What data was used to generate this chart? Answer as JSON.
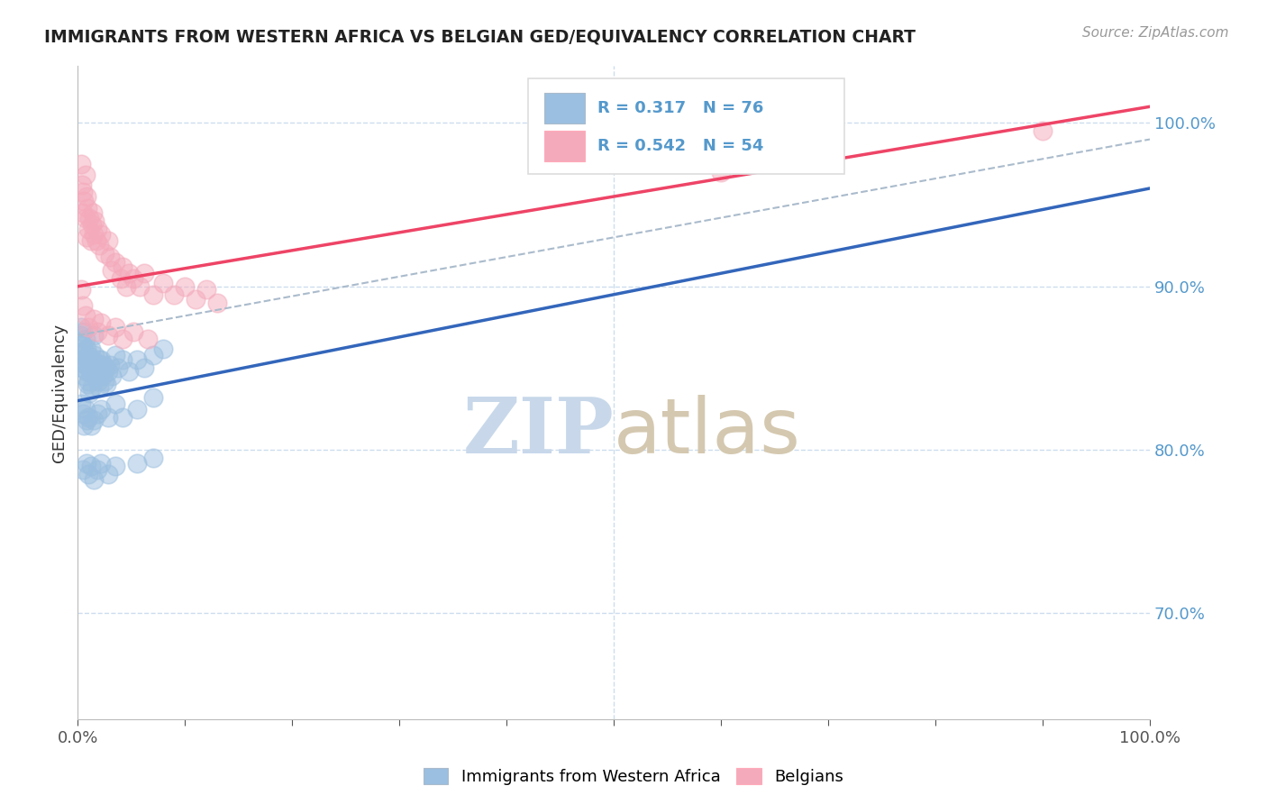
{
  "title": "IMMIGRANTS FROM WESTERN AFRICA VS BELGIAN GED/EQUIVALENCY CORRELATION CHART",
  "source_text": "Source: ZipAtlas.com",
  "ylabel": "GED/Equivalency",
  "y_ticks": [
    "70.0%",
    "80.0%",
    "90.0%",
    "100.0%"
  ],
  "y_tick_vals": [
    0.7,
    0.8,
    0.9,
    1.0
  ],
  "legend_label1": "Immigrants from Western Africa",
  "legend_label2": "Belgians",
  "R1": 0.317,
  "N1": 76,
  "R2": 0.542,
  "N2": 54,
  "color_blue": "#9BBFE0",
  "color_pink": "#F4AABB",
  "color_blue_line": "#3366BB",
  "color_pink_line": "#EE4466",
  "color_dashed": "#AABBCC",
  "watermark_color": "#C8D8EA",
  "xlim": [
    0.0,
    1.0
  ],
  "ylim": [
    0.635,
    1.035
  ],
  "blue_points": [
    [
      0.002,
      0.87
    ],
    [
      0.003,
      0.875
    ],
    [
      0.003,
      0.858
    ],
    [
      0.004,
      0.865
    ],
    [
      0.004,
      0.85
    ],
    [
      0.005,
      0.872
    ],
    [
      0.005,
      0.855
    ],
    [
      0.006,
      0.86
    ],
    [
      0.006,
      0.845
    ],
    [
      0.007,
      0.868
    ],
    [
      0.007,
      0.852
    ],
    [
      0.008,
      0.862
    ],
    [
      0.008,
      0.848
    ],
    [
      0.009,
      0.855
    ],
    [
      0.009,
      0.84
    ],
    [
      0.01,
      0.858
    ],
    [
      0.01,
      0.842
    ],
    [
      0.011,
      0.85
    ],
    [
      0.011,
      0.835
    ],
    [
      0.012,
      0.862
    ],
    [
      0.012,
      0.847
    ],
    [
      0.013,
      0.855
    ],
    [
      0.013,
      0.838
    ],
    [
      0.014,
      0.848
    ],
    [
      0.015,
      0.87
    ],
    [
      0.015,
      0.852
    ],
    [
      0.016,
      0.858
    ],
    [
      0.017,
      0.844
    ],
    [
      0.018,
      0.853
    ],
    [
      0.019,
      0.842
    ],
    [
      0.02,
      0.855
    ],
    [
      0.02,
      0.838
    ],
    [
      0.021,
      0.848
    ],
    [
      0.022,
      0.855
    ],
    [
      0.023,
      0.845
    ],
    [
      0.024,
      0.852
    ],
    [
      0.025,
      0.842
    ],
    [
      0.026,
      0.85
    ],
    [
      0.027,
      0.84
    ],
    [
      0.028,
      0.848
    ],
    [
      0.03,
      0.852
    ],
    [
      0.032,
      0.845
    ],
    [
      0.035,
      0.858
    ],
    [
      0.038,
      0.85
    ],
    [
      0.042,
      0.855
    ],
    [
      0.048,
      0.848
    ],
    [
      0.055,
      0.855
    ],
    [
      0.062,
      0.85
    ],
    [
      0.07,
      0.858
    ],
    [
      0.08,
      0.862
    ],
    [
      0.003,
      0.828
    ],
    [
      0.005,
      0.822
    ],
    [
      0.006,
      0.815
    ],
    [
      0.007,
      0.825
    ],
    [
      0.008,
      0.818
    ],
    [
      0.01,
      0.82
    ],
    [
      0.012,
      0.815
    ],
    [
      0.015,
      0.818
    ],
    [
      0.018,
      0.822
    ],
    [
      0.022,
      0.825
    ],
    [
      0.028,
      0.82
    ],
    [
      0.035,
      0.828
    ],
    [
      0.042,
      0.82
    ],
    [
      0.055,
      0.825
    ],
    [
      0.07,
      0.832
    ],
    [
      0.005,
      0.788
    ],
    [
      0.008,
      0.792
    ],
    [
      0.01,
      0.785
    ],
    [
      0.012,
      0.79
    ],
    [
      0.015,
      0.782
    ],
    [
      0.018,
      0.788
    ],
    [
      0.022,
      0.792
    ],
    [
      0.028,
      0.785
    ],
    [
      0.035,
      0.79
    ],
    [
      0.055,
      0.792
    ],
    [
      0.07,
      0.795
    ]
  ],
  "pink_points": [
    [
      0.003,
      0.975
    ],
    [
      0.004,
      0.962
    ],
    [
      0.005,
      0.958
    ],
    [
      0.005,
      0.945
    ],
    [
      0.006,
      0.952
    ],
    [
      0.007,
      0.968
    ],
    [
      0.007,
      0.942
    ],
    [
      0.008,
      0.955
    ],
    [
      0.008,
      0.93
    ],
    [
      0.009,
      0.948
    ],
    [
      0.01,
      0.935
    ],
    [
      0.011,
      0.942
    ],
    [
      0.012,
      0.928
    ],
    [
      0.013,
      0.938
    ],
    [
      0.014,
      0.945
    ],
    [
      0.015,
      0.932
    ],
    [
      0.016,
      0.94
    ],
    [
      0.017,
      0.928
    ],
    [
      0.018,
      0.935
    ],
    [
      0.02,
      0.925
    ],
    [
      0.022,
      0.932
    ],
    [
      0.025,
      0.92
    ],
    [
      0.028,
      0.928
    ],
    [
      0.03,
      0.918
    ],
    [
      0.032,
      0.91
    ],
    [
      0.035,
      0.915
    ],
    [
      0.04,
      0.905
    ],
    [
      0.042,
      0.912
    ],
    [
      0.045,
      0.9
    ],
    [
      0.048,
      0.908
    ],
    [
      0.052,
      0.905
    ],
    [
      0.058,
      0.9
    ],
    [
      0.062,
      0.908
    ],
    [
      0.07,
      0.895
    ],
    [
      0.08,
      0.902
    ],
    [
      0.09,
      0.895
    ],
    [
      0.1,
      0.9
    ],
    [
      0.11,
      0.892
    ],
    [
      0.12,
      0.898
    ],
    [
      0.003,
      0.898
    ],
    [
      0.005,
      0.888
    ],
    [
      0.007,
      0.882
    ],
    [
      0.01,
      0.875
    ],
    [
      0.015,
      0.88
    ],
    [
      0.018,
      0.872
    ],
    [
      0.022,
      0.878
    ],
    [
      0.028,
      0.87
    ],
    [
      0.035,
      0.875
    ],
    [
      0.042,
      0.868
    ],
    [
      0.052,
      0.872
    ],
    [
      0.065,
      0.868
    ],
    [
      0.13,
      0.89
    ],
    [
      0.9,
      0.995
    ],
    [
      0.6,
      0.97
    ]
  ],
  "blue_line": [
    0.0,
    0.83,
    1.0,
    0.96
  ],
  "pink_line": [
    0.0,
    0.9,
    1.0,
    1.01
  ],
  "dashed_line": [
    0.0,
    0.87,
    1.0,
    0.99
  ]
}
